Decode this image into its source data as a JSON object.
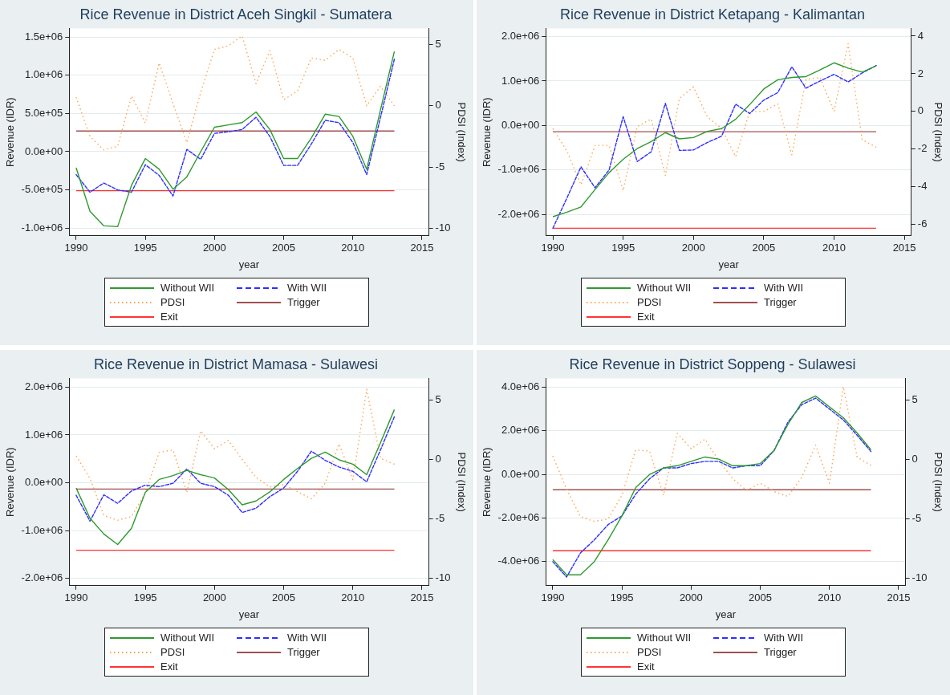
{
  "chart_data": [
    {
      "type": "line",
      "title": "Rice Revenue in District Aceh Singkil - Sumatera",
      "xlabel": "year",
      "ylabel": "Revenue (IDR)",
      "y2label": "PDSI (Index)",
      "x": [
        1990,
        1991,
        1992,
        1993,
        1994,
        1995,
        1996,
        1997,
        1998,
        1999,
        2000,
        2001,
        2002,
        2003,
        2004,
        2005,
        2006,
        2007,
        2008,
        2009,
        2010,
        2011,
        2012,
        2013
      ],
      "xlim": [
        1989.5,
        2015.5
      ],
      "xticks": [
        1990,
        1995,
        2000,
        2005,
        2010,
        2015
      ],
      "ylim": [
        -1100000,
        1610000
      ],
      "yticks": [
        {
          "value": -1000000,
          "label": "-1.0e+06"
        },
        {
          "value": -500000,
          "label": "-5.0e+05"
        },
        {
          "value": 0,
          "label": "0.0e+00"
        },
        {
          "value": 500000,
          "label": "5.0e+05"
        },
        {
          "value": 1000000,
          "label": "1.0e+06"
        },
        {
          "value": 1500000,
          "label": "1.5e+06"
        }
      ],
      "y2lim": [
        -10.6,
        6.3
      ],
      "y2ticks": [
        -10,
        -5,
        0,
        5
      ],
      "grid": "y",
      "legend": "bottom",
      "series": [
        {
          "name": "Without WII",
          "color": "#2e9a2e",
          "line_style": "solid",
          "values": [
            -210000,
            -780000,
            -970000,
            -980000,
            -440000,
            -90000,
            -230000,
            -490000,
            -330000,
            0,
            320000,
            350000,
            380000,
            520000,
            290000,
            -90000,
            -90000,
            180000,
            490000,
            460000,
            200000,
            -230000,
            550000,
            1310000
          ]
        },
        {
          "name": "With WII",
          "color": "#2e2eff",
          "line_style": "dashed",
          "values": [
            -300000,
            -530000,
            -410000,
            -500000,
            -530000,
            -170000,
            -310000,
            -580000,
            30000,
            -100000,
            240000,
            260000,
            290000,
            450000,
            200000,
            -180000,
            -180000,
            100000,
            410000,
            380000,
            120000,
            -300000,
            450000,
            1210000
          ]
        },
        {
          "name": "PDSI",
          "color": "#ffa54f",
          "line_style": "dotted",
          "axis": "y2",
          "values": [
            0.7,
            -2.5,
            -3.6,
            -3.3,
            0.8,
            -1.4,
            3.5,
            0.2,
            -3.0,
            1.1,
            4.6,
            4.9,
            5.7,
            1.8,
            4.5,
            0.5,
            1.2,
            3.9,
            3.7,
            4.6,
            3.9,
            0.0,
            1.6,
            0.0
          ]
        },
        {
          "name": "Trigger",
          "color": "#a05050",
          "line_style": "solid",
          "values": [
            270000,
            270000,
            270000,
            270000,
            270000,
            270000,
            270000,
            270000,
            270000,
            270000,
            270000,
            270000,
            270000,
            270000,
            270000,
            270000,
            270000,
            270000,
            270000,
            270000,
            270000,
            270000,
            270000,
            270000
          ]
        },
        {
          "name": "Exit",
          "color": "#ff3333",
          "line_style": "solid",
          "values": [
            -510000,
            -510000,
            -510000,
            -510000,
            -510000,
            -510000,
            -510000,
            -510000,
            -510000,
            -510000,
            -510000,
            -510000,
            -510000,
            -510000,
            -510000,
            -510000,
            -510000,
            -510000,
            -510000,
            -510000,
            -510000,
            -510000,
            -510000,
            -510000
          ]
        }
      ]
    },
    {
      "type": "line",
      "title": "Rice Revenue in District Ketapang - Kalimantan",
      "xlabel": "year",
      "ylabel": "Revenue (IDR)",
      "y2label": "PDSI (Index)",
      "x": [
        1990,
        1991,
        1992,
        1993,
        1994,
        1995,
        1996,
        1997,
        1998,
        1999,
        2000,
        2001,
        2002,
        2003,
        2004,
        2005,
        2006,
        2007,
        2008,
        2009,
        2010,
        2011,
        2012,
        2013
      ],
      "xlim": [
        1989.5,
        2015.5
      ],
      "xticks": [
        1990,
        1995,
        2000,
        2005,
        2010,
        2015
      ],
      "ylim": [
        -2480000,
        2180000
      ],
      "yticks": [
        {
          "value": -2000000,
          "label": "-2.0e+06"
        },
        {
          "value": -1000000,
          "label": "-1.0e+06"
        },
        {
          "value": 0,
          "label": "0.0e+00"
        },
        {
          "value": 1000000,
          "label": "1.0e+06"
        },
        {
          "value": 2000000,
          "label": "2.0e+06"
        }
      ],
      "y2lim": [
        -6.6,
        4.4
      ],
      "y2ticks": [
        -6,
        -4,
        -2,
        0,
        2,
        4
      ],
      "grid": "y",
      "legend": "bottom",
      "series": [
        {
          "name": "Without WII",
          "color": "#2e9a2e",
          "line_style": "solid",
          "values": [
            -2050000,
            -1950000,
            -1830000,
            -1440000,
            -1060000,
            -760000,
            -520000,
            -360000,
            -160000,
            -300000,
            -270000,
            -130000,
            -70000,
            140000,
            470000,
            820000,
            1030000,
            1080000,
            1100000,
            1250000,
            1410000,
            1290000,
            1200000,
            1340000
          ]
        },
        {
          "name": "With WII",
          "color": "#2e2eff",
          "line_style": "dashed",
          "values": [
            -2310000,
            -1630000,
            -930000,
            -1400000,
            -1000000,
            200000,
            -810000,
            -590000,
            500000,
            -560000,
            -550000,
            -380000,
            -240000,
            480000,
            270000,
            570000,
            740000,
            1320000,
            840000,
            1000000,
            1150000,
            980000,
            1180000,
            1350000
          ]
        },
        {
          "name": "PDSI",
          "color": "#ffa54f",
          "line_style": "dotted",
          "axis": "y2",
          "values": [
            -0.9,
            -2.1,
            -3.9,
            -1.8,
            -1.8,
            -4.2,
            -0.8,
            -0.4,
            -3.4,
            0.7,
            1.3,
            -0.3,
            -0.9,
            -2.4,
            0.0,
            0.0,
            0.4,
            -2.3,
            1.7,
            1.8,
            0.0,
            3.6,
            -1.5,
            -1.9
          ]
        },
        {
          "name": "Trigger",
          "color": "#a05050",
          "line_style": "solid",
          "values": [
            -140000,
            -140000,
            -140000,
            -140000,
            -140000,
            -140000,
            -140000,
            -140000,
            -140000,
            -140000,
            -140000,
            -140000,
            -140000,
            -140000,
            -140000,
            -140000,
            -140000,
            -140000,
            -140000,
            -140000,
            -140000,
            -140000,
            -140000,
            -140000
          ]
        },
        {
          "name": "Exit",
          "color": "#ff3333",
          "line_style": "solid",
          "values": [
            -2310000,
            -2310000,
            -2310000,
            -2310000,
            -2310000,
            -2310000,
            -2310000,
            -2310000,
            -2310000,
            -2310000,
            -2310000,
            -2310000,
            -2310000,
            -2310000,
            -2310000,
            -2310000,
            -2310000,
            -2310000,
            -2310000,
            -2310000,
            -2310000,
            -2310000,
            -2310000,
            -2310000
          ]
        }
      ]
    },
    {
      "type": "line",
      "title": "Rice Revenue in District Mamasa - Sulawesi",
      "xlabel": "year",
      "ylabel": "Revenue (IDR)",
      "y2label": "PDSI (Index)",
      "x": [
        1990,
        1991,
        1992,
        1993,
        1994,
        1995,
        1996,
        1997,
        1998,
        1999,
        2000,
        2001,
        2002,
        2003,
        2004,
        2005,
        2006,
        2007,
        2008,
        2009,
        2010,
        2011,
        2012,
        2013
      ],
      "xlim": [
        1989.5,
        2015.5
      ],
      "xticks": [
        1990,
        1995,
        2000,
        2005,
        2010,
        2015
      ],
      "ylim": [
        -2150000,
        2180000
      ],
      "yticks": [
        {
          "value": -2000000,
          "label": "-2.0e+06"
        },
        {
          "value": -1000000,
          "label": "-1.0e+06"
        },
        {
          "value": 0,
          "label": "0.0e+00"
        },
        {
          "value": 1000000,
          "label": "1.0e+06"
        },
        {
          "value": 2000000,
          "label": "2.0e+06"
        }
      ],
      "y2lim": [
        -10.6,
        6.8
      ],
      "y2ticks": [
        -10,
        -5,
        0,
        5
      ],
      "grid": "y",
      "legend": "bottom",
      "series": [
        {
          "name": "Without WII",
          "color": "#2e9a2e",
          "line_style": "solid",
          "values": [
            -110000,
            -740000,
            -1070000,
            -1290000,
            -950000,
            -200000,
            70000,
            150000,
            260000,
            170000,
            100000,
            -140000,
            -460000,
            -380000,
            -190000,
            70000,
            300000,
            510000,
            640000,
            480000,
            390000,
            170000,
            840000,
            1530000
          ]
        },
        {
          "name": "With WII",
          "color": "#2e2eff",
          "line_style": "dashed",
          "values": [
            -260000,
            -800000,
            -250000,
            -430000,
            -170000,
            -50000,
            -80000,
            -10000,
            290000,
            -10000,
            -80000,
            -260000,
            -620000,
            -530000,
            -290000,
            -110000,
            240000,
            660000,
            470000,
            330000,
            240000,
            20000,
            690000,
            1380000
          ]
        },
        {
          "name": "PDSI",
          "color": "#ffa54f",
          "line_style": "dotted",
          "axis": "y2",
          "values": [
            0.3,
            -1.6,
            -4.7,
            -5.1,
            -4.8,
            -2.8,
            0.6,
            0.8,
            -2.8,
            2.4,
            0.9,
            1.6,
            0.0,
            -1.5,
            -2.3,
            -2.1,
            -2.7,
            -3.3,
            -2.0,
            1.3,
            -1.7,
            5.9,
            0.1,
            -0.4
          ]
        },
        {
          "name": "Trigger",
          "color": "#a05050",
          "line_style": "solid",
          "values": [
            -130000,
            -130000,
            -130000,
            -130000,
            -130000,
            -130000,
            -130000,
            -130000,
            -130000,
            -130000,
            -130000,
            -130000,
            -130000,
            -130000,
            -130000,
            -130000,
            -130000,
            -130000,
            -130000,
            -130000,
            -130000,
            -130000,
            -130000,
            -130000
          ]
        },
        {
          "name": "Exit",
          "color": "#ff3333",
          "line_style": "solid",
          "values": [
            -1410000,
            -1410000,
            -1410000,
            -1410000,
            -1410000,
            -1410000,
            -1410000,
            -1410000,
            -1410000,
            -1410000,
            -1410000,
            -1410000,
            -1410000,
            -1410000,
            -1410000,
            -1410000,
            -1410000,
            -1410000,
            -1410000,
            -1410000,
            -1410000,
            -1410000,
            -1410000,
            -1410000
          ]
        }
      ]
    },
    {
      "type": "line",
      "title": "Rice Revenue in District Soppeng - Sulawesi",
      "xlabel": "year",
      "ylabel": "Revenue (IDR)",
      "y2label": "PDSI (Index)",
      "x": [
        1990,
        1991,
        1992,
        1993,
        1994,
        1995,
        1996,
        1997,
        1998,
        1999,
        2000,
        2001,
        2002,
        2003,
        2004,
        2005,
        2006,
        2007,
        2008,
        2009,
        2010,
        2011,
        2012,
        2013
      ],
      "xlim": [
        1989.5,
        2015.5
      ],
      "xticks": [
        1990,
        1995,
        2000,
        2005,
        2010,
        2015
      ],
      "ylim": [
        -5100000,
        4400000
      ],
      "yticks": [
        {
          "value": -4000000,
          "label": "-4.0e+06"
        },
        {
          "value": -2000000,
          "label": "-2.0e+06"
        },
        {
          "value": 0,
          "label": "0.0e+00"
        },
        {
          "value": 2000000,
          "label": "2.0e+06"
        },
        {
          "value": 4000000,
          "label": "4.0e+06"
        }
      ],
      "y2lim": [
        -10.6,
        6.8
      ],
      "y2ticks": [
        -10,
        -5,
        0,
        5
      ],
      "grid": "y",
      "legend": "bottom",
      "series": [
        {
          "name": "Without WII",
          "color": "#2e9a2e",
          "line_style": "solid",
          "values": [
            -3900000,
            -4600000,
            -4600000,
            -4000000,
            -3000000,
            -1900000,
            -600000,
            0,
            300000,
            400000,
            600000,
            800000,
            700000,
            400000,
            400000,
            500000,
            1100000,
            2300000,
            3300000,
            3600000,
            3100000,
            2600000,
            1900000,
            1130000
          ]
        },
        {
          "name": "With WII",
          "color": "#2e2eff",
          "line_style": "dashed",
          "values": [
            -4000000,
            -4700000,
            -3600000,
            -3000000,
            -2300000,
            -1900000,
            -900000,
            -200000,
            300000,
            300000,
            500000,
            600000,
            600000,
            300000,
            400000,
            400000,
            1100000,
            2400000,
            3200000,
            3500000,
            3000000,
            2500000,
            1800000,
            1050000
          ]
        },
        {
          "name": "PDSI",
          "color": "#ffa54f",
          "line_style": "dotted",
          "axis": "y2",
          "values": [
            0.3,
            -2.5,
            -4.8,
            -5.2,
            -5.0,
            -3.0,
            0.8,
            0.7,
            -3.0,
            2.2,
            0.9,
            1.7,
            -0.1,
            -1.6,
            -2.6,
            -2.0,
            -2.7,
            -3.1,
            -1.5,
            1.2,
            -2.0,
            6.1,
            0.2,
            -0.5
          ]
        },
        {
          "name": "Trigger",
          "color": "#a05050",
          "line_style": "solid",
          "values": [
            -700000,
            -700000,
            -700000,
            -700000,
            -700000,
            -700000,
            -700000,
            -700000,
            -700000,
            -700000,
            -700000,
            -700000,
            -700000,
            -700000,
            -700000,
            -700000,
            -700000,
            -700000,
            -700000,
            -700000,
            -700000,
            -700000,
            -700000,
            -700000
          ]
        },
        {
          "name": "Exit",
          "color": "#ff3333",
          "line_style": "solid",
          "values": [
            -3500000,
            -3500000,
            -3500000,
            -3500000,
            -3500000,
            -3500000,
            -3500000,
            -3500000,
            -3500000,
            -3500000,
            -3500000,
            -3500000,
            -3500000,
            -3500000,
            -3500000,
            -3500000,
            -3500000,
            -3500000,
            -3500000,
            -3500000,
            -3500000,
            -3500000,
            -3500000,
            -3500000
          ]
        }
      ]
    }
  ]
}
